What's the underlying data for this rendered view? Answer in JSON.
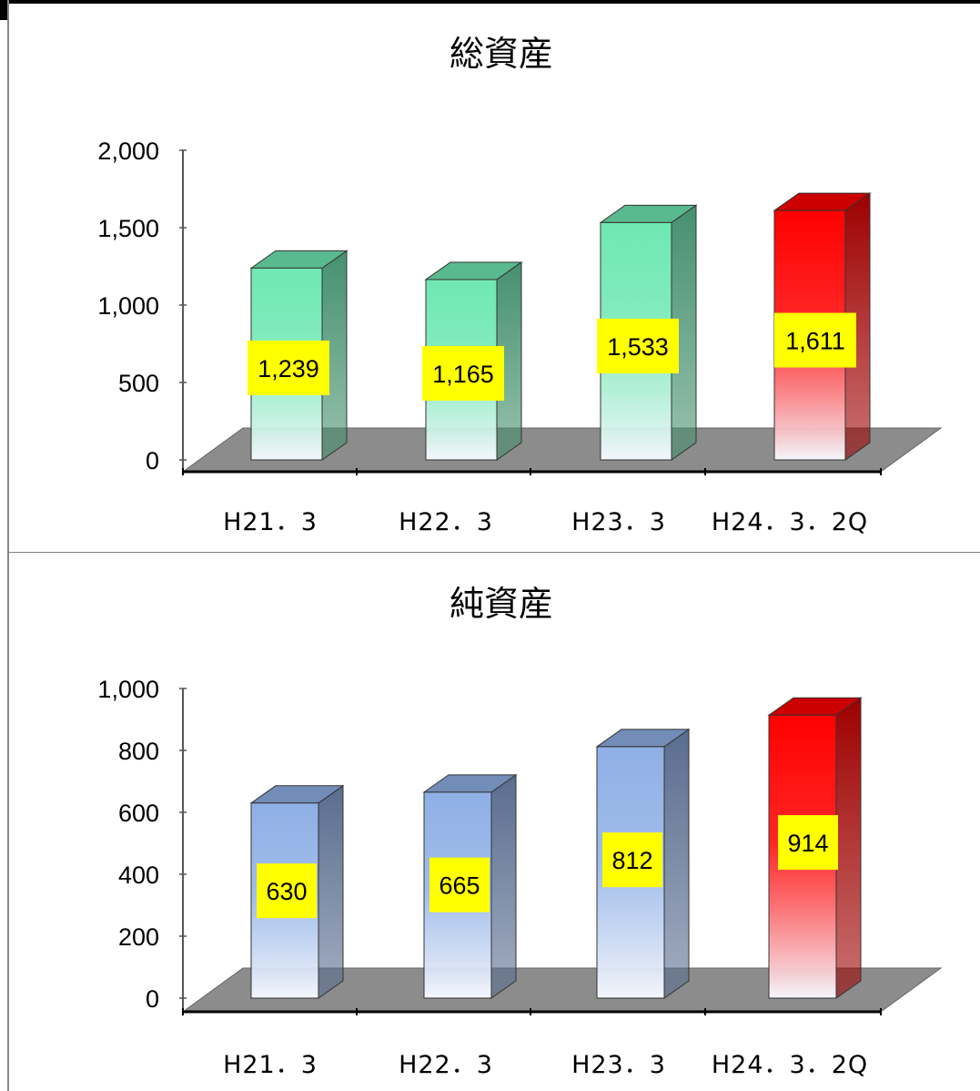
{
  "chart_data": [
    {
      "type": "bar",
      "title": "総資産",
      "categories": [
        "H21．3",
        "H22．3",
        "H23．3",
        "H24．3．2Q"
      ],
      "values": [
        1239,
        1165,
        1533,
        1611
      ],
      "value_labels": [
        "1,239",
        "1,165",
        "1,533",
        "1,611"
      ],
      "ylim": [
        0,
        2000
      ],
      "yticks": [
        "0",
        "500",
        "1,000",
        "1,500",
        "2,000"
      ],
      "ytick_values": [
        0,
        500,
        1000,
        1500,
        2000
      ],
      "bar_colors": [
        "#6fe8b3",
        "#6fe8b3",
        "#6fe8b3",
        "#ff0000"
      ],
      "label_background": "#ffff00",
      "grid": false,
      "style": "3d"
    },
    {
      "type": "bar",
      "title": "純資産",
      "categories": [
        "H21．3",
        "H22．3",
        "H23．3",
        "H24．3．2Q"
      ],
      "values": [
        630,
        665,
        812,
        914
      ],
      "value_labels": [
        "630",
        "665",
        "812",
        "914"
      ],
      "ylim": [
        0,
        1000
      ],
      "yticks": [
        "0",
        "200",
        "400",
        "600",
        "800",
        "1,000"
      ],
      "ytick_values": [
        0,
        200,
        400,
        600,
        800,
        1000
      ],
      "bar_colors": [
        "#8fb0e6",
        "#8fb0e6",
        "#8fb0e6",
        "#ff0000"
      ],
      "label_background": "#ffff00",
      "grid": false,
      "style": "3d"
    }
  ]
}
